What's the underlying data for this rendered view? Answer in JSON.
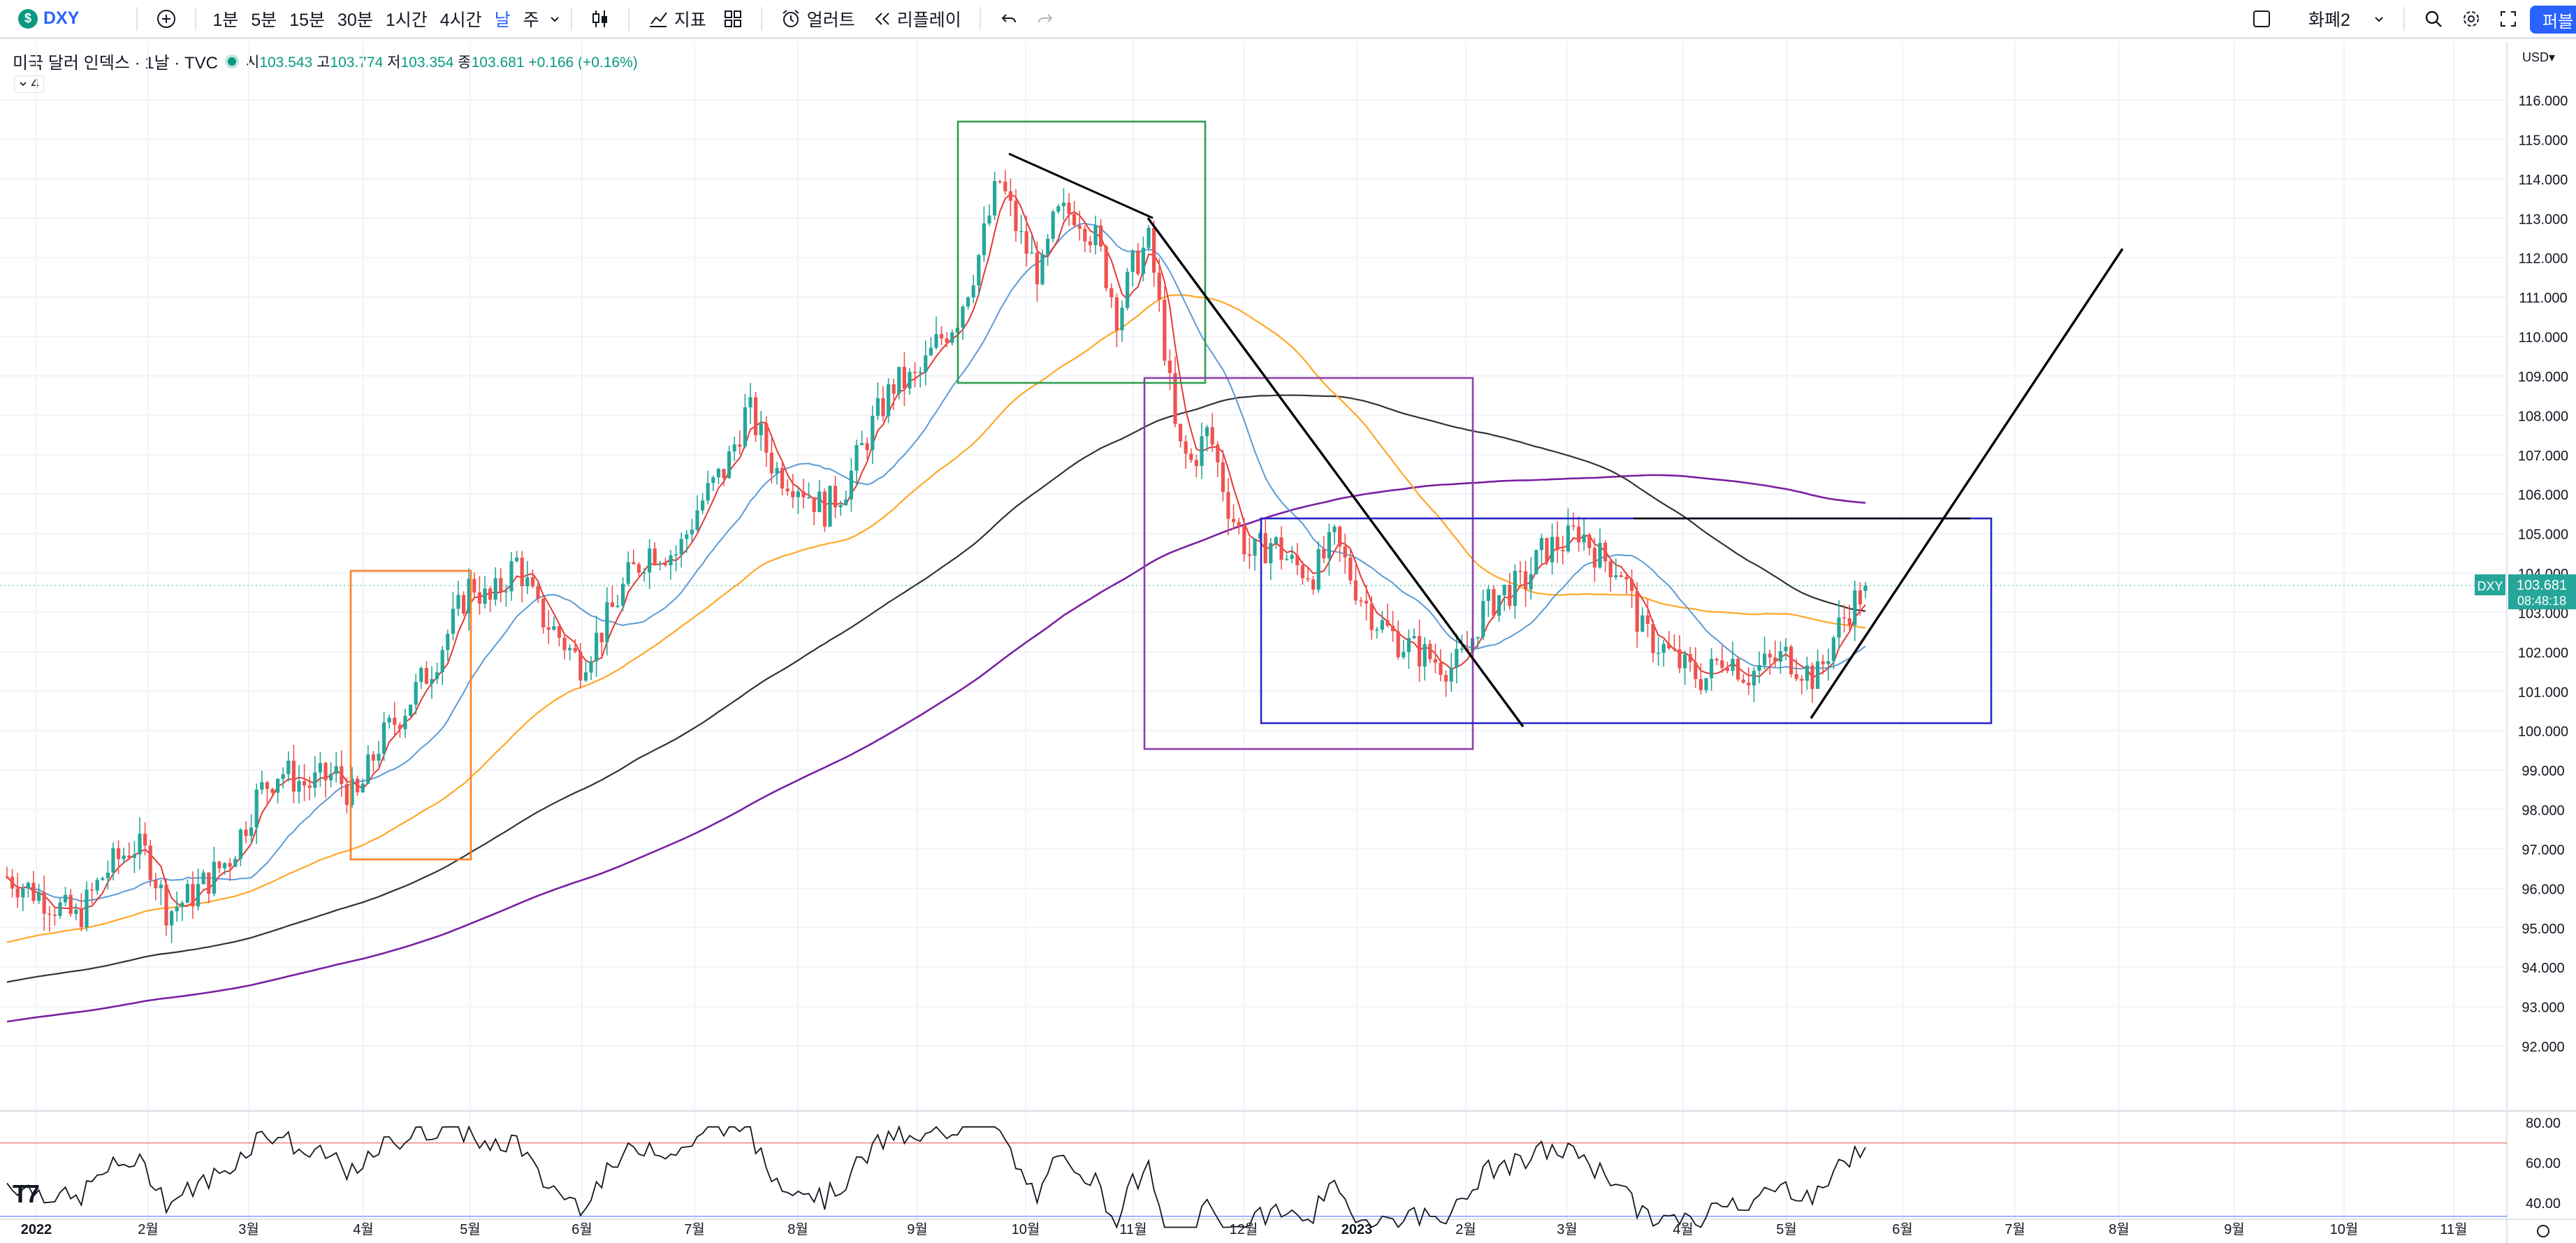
{
  "toolbar": {
    "symbol": "DXY",
    "intervals": [
      "1분",
      "5분",
      "15분",
      "30분",
      "1시간",
      "4시간",
      "날",
      "주"
    ],
    "active_interval": "날",
    "indicators_label": "지표",
    "alerts_label": "얼러트",
    "replay_label": "리플레이",
    "layout_label": "화폐2",
    "publish_label": "퍼블"
  },
  "legend": {
    "title": "미국 달러 인덱스 · 1날 · TVC",
    "o_label": "시",
    "o_value": "103.543",
    "h_label": "고",
    "h_value": "103.774",
    "l_label": "저",
    "l_value": "103.354",
    "c_label": "종",
    "c_value": "103.681",
    "change": "+0.166 (+0.16%)",
    "collapse_count": "4"
  },
  "price_axis": {
    "currency": "USD",
    "ticks": [
      "116.000",
      "115.000",
      "114.000",
      "113.000",
      "112.000",
      "111.000",
      "110.000",
      "109.000",
      "108.000",
      "107.000",
      "106.000",
      "105.000",
      "104.000",
      "103.000",
      "102.000",
      "101.000",
      "100.000",
      "99.000",
      "98.000",
      "97.000",
      "96.000",
      "95.000",
      "94.000",
      "93.000",
      "92.000"
    ],
    "last_symbol": "DXY",
    "last_price": "103.681",
    "countdown": "08:48:18"
  },
  "rsi_axis": {
    "ticks": [
      "80.00",
      "60.00",
      "40.00"
    ]
  },
  "time_axis": {
    "labels": [
      "2022",
      "2월",
      "3월",
      "4월",
      "5월",
      "6월",
      "7월",
      "8월",
      "9월",
      "10월",
      "11월",
      "12월",
      "2023",
      "2월",
      "3월",
      "4월",
      "5월",
      "6월",
      "7월",
      "8월",
      "9월",
      "10월",
      "11월"
    ]
  },
  "colors": {
    "up": "#26a69a",
    "down": "#ef5350",
    "ma_red": "#e53935",
    "ma_blue": "#5b9bd5",
    "ma_orange": "#ffa726",
    "ma_black": "#333333",
    "ma_purple": "#7b1fa2",
    "box_orange": "#ff7f27",
    "box_green": "#2e9e4f",
    "box_purple": "#8e3fa8",
    "box_blue": "#2727c8"
  },
  "chart_data": {
    "type": "candlestick",
    "title": "",
    "xlabel": "",
    "ylabel": "",
    "ylim": [
      91.5,
      116.6
    ],
    "grid": true,
    "checkpoints": [
      {
        "x": "2022-01",
        "y": 96.2
      },
      {
        "x": "2022-02",
        "y": 95.6
      },
      {
        "x": "2022-03",
        "y": 98.6
      },
      {
        "x": "2022-04",
        "y": 99.8
      },
      {
        "x": "2022-05",
        "y": 103.4
      },
      {
        "x": "2022-06",
        "y": 102.0
      },
      {
        "x": "2022-07",
        "y": 105.0
      },
      {
        "x": "2022-08",
        "y": 106.0
      },
      {
        "x": "2022-09",
        "y": 108.8
      },
      {
        "x": "2022-10",
        "y": 112.0
      },
      {
        "x": "2022-11",
        "y": 111.5
      },
      {
        "x": "2022-12",
        "y": 104.5
      },
      {
        "x": "2023-01",
        "y": 103.5
      },
      {
        "x": "2023-02",
        "y": 102.2
      },
      {
        "x": "2023-03",
        "y": 104.5
      },
      {
        "x": "2023-04",
        "y": 102.0
      },
      {
        "x": "2023-05",
        "y": 101.5
      },
      {
        "x": "2023-05-26",
        "y": 103.681
      }
    ]
  }
}
